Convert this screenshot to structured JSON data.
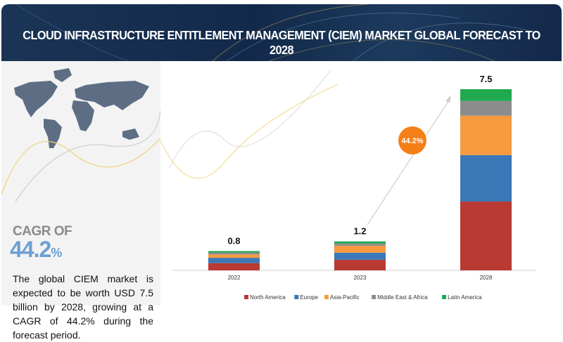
{
  "header": {
    "title": "CLOUD INFRASTRUCTURE ENTITLEMENT MANAGEMENT (CIEM) MARKET GLOBAL FORECAST TO 2028"
  },
  "left_panel": {
    "cagr_label": "CAGR OF",
    "cagr_value": "44.2",
    "cagr_unit": "%",
    "description": "The global CIEM market is expected to be worth USD 7.5 billion by 2028, growing at a CAGR of 44.2% during the forecast period.",
    "icon": "world-map-icon"
  },
  "chart_data": {
    "type": "bar",
    "stacked": true,
    "categories": [
      "2022",
      "2023",
      "2028"
    ],
    "totals": [
      "0.8",
      "1.2",
      "7.5"
    ],
    "series": [
      {
        "name": "North America",
        "color": "#b83a33",
        "values": [
          0.3,
          0.44,
          2.85
        ]
      },
      {
        "name": "Europe",
        "color": "#3a78b8",
        "values": [
          0.22,
          0.29,
          1.92
        ]
      },
      {
        "name": "Asia-Pacific",
        "color": "#f7993f",
        "values": [
          0.14,
          0.29,
          1.63
        ]
      },
      {
        "name": "Middle East & Africa",
        "color": "#8c8c8c",
        "values": [
          0.08,
          0.09,
          0.61
        ]
      },
      {
        "name": "Latin America",
        "color": "#21a94f",
        "values": [
          0.06,
          0.09,
          0.49
        ]
      }
    ],
    "annotation": "44.2%",
    "annotation_color": "#f57f17",
    "legend_position": "bottom",
    "grid": false,
    "ylim": [
      0,
      7.5
    ]
  }
}
